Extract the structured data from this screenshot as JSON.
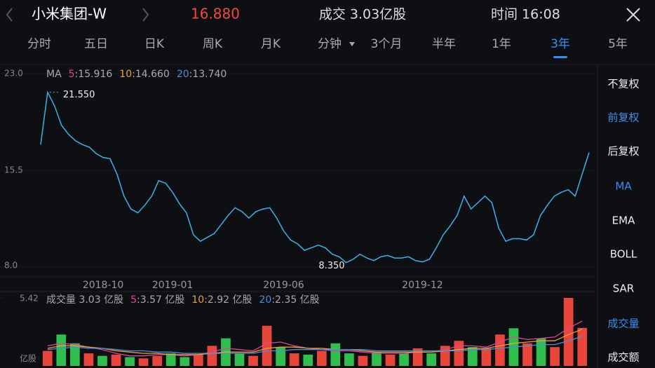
{
  "header": {
    "title": "小米集团-W",
    "price": "16.880",
    "volume": "成交 3.03亿股",
    "time": "时间 16:08"
  },
  "tabs": [
    "分时",
    "五日",
    "日K",
    "周K",
    "月K",
    "分钟",
    "3个月",
    "半年",
    "1年",
    "3年",
    "5年"
  ],
  "active_tab": 9,
  "side_options": [
    "不复权",
    "前复权",
    "后复权",
    "MA",
    "EMA",
    "BOLL",
    "SAR",
    "成交量",
    "成交额"
  ],
  "side_active": [
    1,
    3,
    7
  ],
  "chart_data": [
    {
      "type": "line",
      "color": "#3ab3e6",
      "ylim": [
        8.0,
        23.0
      ],
      "yticks": [
        {
          "value": 23.0,
          "label": "23.0"
        },
        {
          "value": 15.5,
          "label": "15.5"
        },
        {
          "value": 8.0,
          "label": "8.0"
        }
      ],
      "ma_title": "MA",
      "ma_legend": [
        {
          "name": "5",
          "label": ":15.916",
          "color": "#e0449a"
        },
        {
          "name": "10",
          "label": ":14.660",
          "color": "#e8a23a"
        },
        {
          "name": "20",
          "label": ":13.740",
          "color": "#4a90d9"
        }
      ],
      "annotations": [
        {
          "value": 21.55,
          "label": "21.550"
        },
        {
          "value": 8.35,
          "label": "8.350"
        }
      ],
      "categories": [
        null,
        null,
        null,
        null,
        null,
        null,
        null,
        null,
        null,
        "2018-10",
        null,
        null,
        null,
        null,
        null,
        null,
        null,
        null,
        null,
        "2019-01",
        null,
        null,
        null,
        null,
        null,
        null,
        null,
        null,
        null,
        null,
        null,
        null,
        null,
        null,
        null,
        "2019-06",
        null,
        null,
        null,
        null,
        null,
        null,
        null,
        null,
        null,
        null,
        null,
        null,
        null,
        null,
        null,
        null,
        null,
        null,
        null,
        "2019-12",
        null,
        null,
        null,
        null,
        null,
        null,
        null,
        null,
        null,
        null,
        null,
        null,
        null,
        null,
        null,
        null,
        null,
        null,
        null,
        null,
        null,
        null,
        null,
        null
      ],
      "values": [
        17.5,
        21.55,
        20.5,
        19.0,
        18.3,
        17.8,
        17.5,
        17.3,
        16.8,
        16.5,
        16.4,
        15.2,
        13.5,
        12.5,
        12.2,
        12.8,
        13.5,
        14.7,
        14.5,
        13.8,
        12.9,
        12.2,
        10.5,
        10.0,
        10.3,
        10.6,
        11.3,
        12.0,
        12.6,
        12.3,
        11.8,
        12.3,
        12.5,
        12.6,
        11.8,
        10.8,
        10.1,
        9.8,
        9.3,
        9.5,
        9.7,
        9.5,
        9.0,
        8.8,
        8.35,
        8.6,
        9.0,
        8.7,
        8.5,
        8.8,
        8.9,
        8.7,
        8.7,
        8.8,
        8.5,
        8.4,
        8.6,
        9.5,
        10.5,
        11.2,
        12.0,
        13.5,
        12.5,
        13.0,
        13.5,
        13.0,
        11.0,
        10.0,
        10.2,
        10.2,
        10.1,
        10.5,
        12.0,
        12.8,
        13.5,
        13.8,
        14.0,
        13.5,
        15.2,
        16.88
      ]
    },
    {
      "type": "bar",
      "title": "成交量 3.03 亿股",
      "unit": "亿股",
      "ylim": [
        0,
        5.42
      ],
      "yticks": [
        {
          "value": 5.42,
          "label": "5.42"
        }
      ],
      "values": [
        1.2,
        2.5,
        1.8,
        1.0,
        0.8,
        0.9,
        0.7,
        0.6,
        0.8,
        1.0,
        0.7,
        0.9,
        1.6,
        2.2,
        1.0,
        0.8,
        3.2,
        1.5,
        1.0,
        0.9,
        1.2,
        1.8,
        1.0,
        0.8,
        1.1,
        0.9,
        1.0,
        1.4,
        1.0,
        1.6,
        2.0,
        1.5,
        1.4,
        2.5,
        3.0,
        1.8,
        2.2,
        1.5,
        5.42,
        3.03
      ],
      "bar_colors": [
        "#e8463c",
        "#2fbf4f",
        "#2fbf4f",
        "#e8463c",
        "#2fbf4f",
        "#e8463c",
        "#2fbf4f",
        "#e8463c",
        "#e8463c",
        "#2fbf4f",
        "#2fbf4f",
        "#e8463c",
        "#e8463c",
        "#2fbf4f",
        "#2fbf4f",
        "#e8463c",
        "#e8463c",
        "#2fbf4f",
        "#e8463c",
        "#2fbf4f",
        "#e8463c",
        "#2fbf4f",
        "#2fbf4f",
        "#e8463c",
        "#2fbf4f",
        "#e8463c",
        "#2fbf4f",
        "#e8463c",
        "#2fbf4f",
        "#e8463c",
        "#e8463c",
        "#2fbf4f",
        "#e8463c",
        "#e8463c",
        "#2fbf4f",
        "#e8463c",
        "#2fbf4f",
        "#e8463c",
        "#e8463c",
        "#e8463c"
      ],
      "series": [
        {
          "name": "5",
          "label": ":3.57 亿股",
          "color": "#e0449a",
          "values": [
            1.6,
            1.8,
            1.7,
            1.5,
            1.3,
            1.0,
            0.8,
            0.8,
            0.9,
            0.9,
            0.8,
            0.9,
            1.1,
            1.4,
            1.3,
            1.2,
            1.8,
            1.9,
            1.6,
            1.4,
            1.3,
            1.2,
            1.2,
            1.1,
            1.0,
            1.0,
            1.0,
            1.1,
            1.1,
            1.3,
            1.6,
            1.6,
            1.5,
            1.9,
            2.3,
            2.1,
            2.2,
            2.3,
            3.0,
            3.57
          ]
        },
        {
          "name": "10",
          "label": ":2.92 亿股",
          "color": "#e8a23a",
          "values": [
            1.4,
            1.6,
            1.6,
            1.5,
            1.4,
            1.2,
            1.1,
            1.0,
            1.0,
            0.9,
            0.9,
            0.9,
            1.0,
            1.1,
            1.1,
            1.1,
            1.4,
            1.5,
            1.5,
            1.4,
            1.4,
            1.3,
            1.3,
            1.2,
            1.1,
            1.1,
            1.1,
            1.1,
            1.1,
            1.2,
            1.3,
            1.4,
            1.4,
            1.6,
            1.8,
            1.9,
            2.0,
            2.0,
            2.5,
            2.92
          ]
        },
        {
          "name": "20",
          "label": ":2.35 亿股",
          "color": "#4a90d9",
          "values": [
            1.3,
            1.4,
            1.5,
            1.4,
            1.4,
            1.3,
            1.2,
            1.2,
            1.1,
            1.1,
            1.0,
            1.0,
            1.0,
            1.0,
            1.0,
            1.0,
            1.2,
            1.2,
            1.3,
            1.3,
            1.3,
            1.3,
            1.3,
            1.3,
            1.2,
            1.2,
            1.2,
            1.2,
            1.2,
            1.2,
            1.2,
            1.3,
            1.3,
            1.4,
            1.5,
            1.6,
            1.7,
            1.7,
            2.0,
            2.35
          ]
        }
      ]
    }
  ]
}
